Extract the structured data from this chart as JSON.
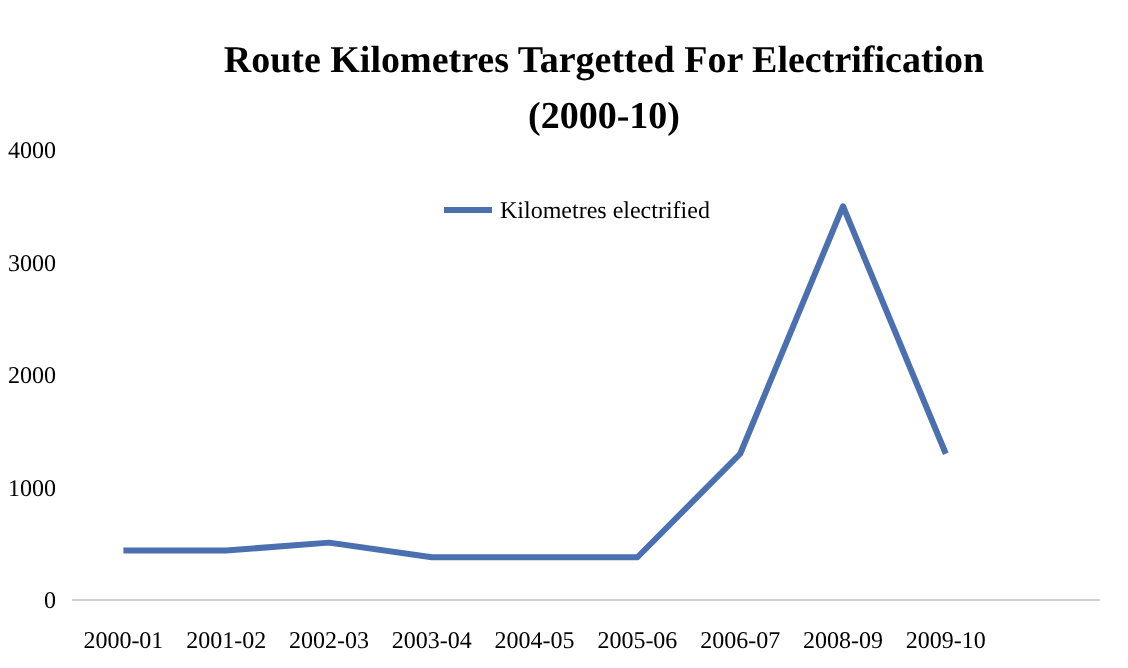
{
  "chart_data": {
    "type": "line",
    "title": "Route Kilometres Targetted For Electrification",
    "subtitle": "(2000-10)",
    "categories": [
      "2000-01",
      "2001-02",
      "2002-03",
      "2003-04",
      "2004-05",
      "2005-06",
      "2006-07",
      "2008-09",
      "2009-10"
    ],
    "series": [
      {
        "name": "Kilometres electrified",
        "color": "#4a70b0",
        "values": [
          440,
          440,
          510,
          380,
          380,
          380,
          1300,
          3500,
          1300
        ]
      }
    ],
    "ylim": [
      0,
      4000
    ],
    "yticks": [
      0,
      1000,
      2000,
      3000,
      4000
    ],
    "grid": false,
    "legend": "top",
    "marker": "none",
    "line_style": "solid"
  }
}
